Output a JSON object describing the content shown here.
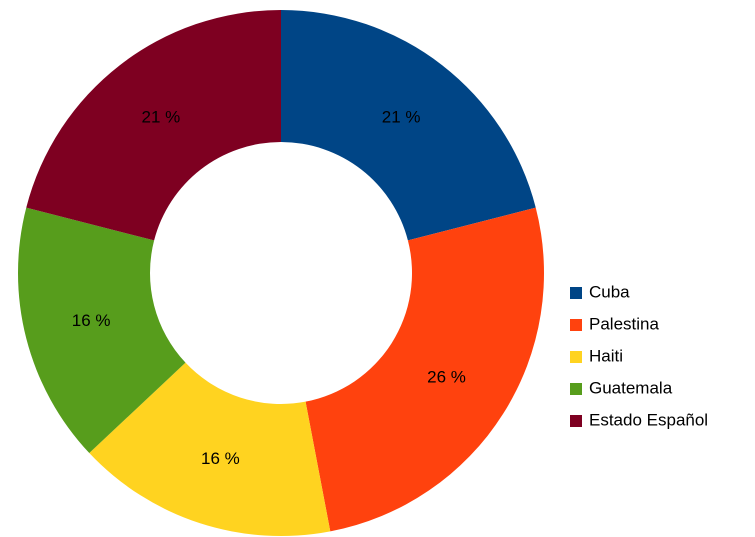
{
  "chart_data": {
    "type": "donut",
    "categories": [
      "Cuba",
      "Palestina",
      "Haiti",
      "Guatemala",
      "Estado Español"
    ],
    "values": [
      21,
      26,
      16,
      16,
      21
    ],
    "value_labels": [
      "21 %",
      "26 %",
      "16 %",
      "16 %",
      "21 %"
    ],
    "colors": [
      "#004586",
      "#ff420e",
      "#ffd320",
      "#579d1c",
      "#7e0021"
    ],
    "legend": "right"
  }
}
